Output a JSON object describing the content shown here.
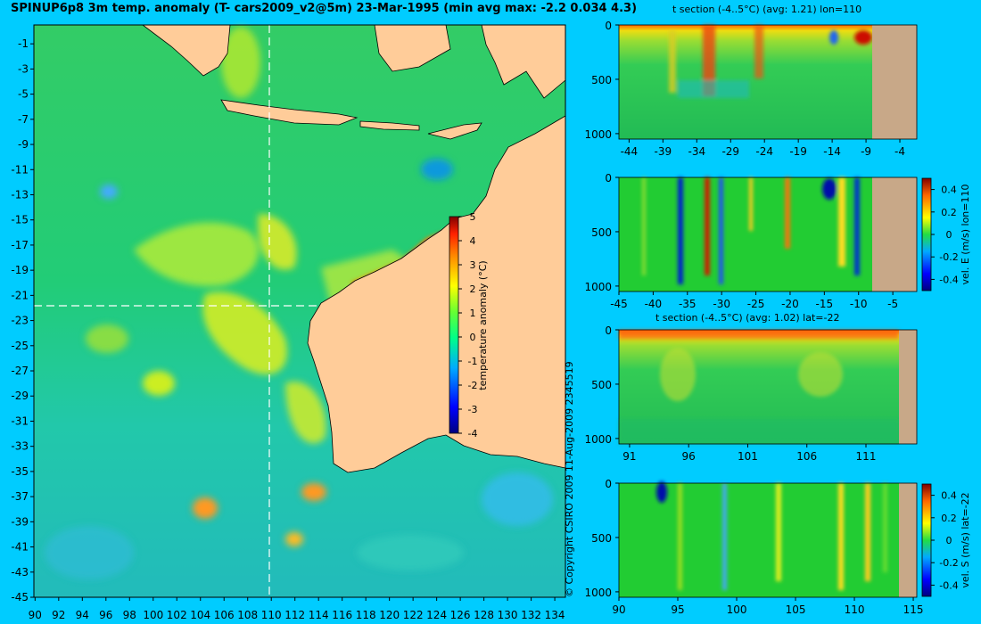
{
  "title": "SPINUP6p8 3m temp. anomaly (T- cars2009_v2@5m) 23-Mar-1995 (min avg max: -2.2 0.034 4.3)",
  "copyright": "© Copyright CSIRO 2009   11-Aug-2009 2345519",
  "colors": {
    "background": "#00ccff",
    "land": "#ffcc99",
    "seafloor": "#c8a888",
    "guide": "#ffffff"
  },
  "map": {
    "x_ticks": [
      "90",
      "92",
      "94",
      "96",
      "98",
      "100",
      "102",
      "104",
      "106",
      "108",
      "110",
      "112",
      "114",
      "116",
      "118",
      "120",
      "122",
      "124",
      "126",
      "128",
      "130",
      "132",
      "134"
    ],
    "y_ticks": [
      "-1",
      "-3",
      "-5",
      "-7",
      "-9",
      "-11",
      "-13",
      "-15",
      "-17",
      "-19",
      "-21",
      "-23",
      "-25",
      "-27",
      "-29",
      "-31",
      "-33",
      "-35",
      "-37",
      "-39",
      "-41",
      "-43",
      "-45"
    ],
    "xlim": [
      89.9,
      134.9
    ],
    "ylim": [
      -45,
      0.5
    ],
    "section_lon": 110,
    "section_lat": -22,
    "colorbar": {
      "label": "temperature anomaly (°C)",
      "ticks": [
        "5",
        "4",
        "3",
        "2",
        "1",
        "0",
        "-1",
        "-2",
        "-3",
        "-4"
      ],
      "range": [
        -4,
        5
      ]
    }
  },
  "panels": [
    {
      "title": "t section (-4..5°C) (avg: 1.21) lon=110",
      "x_ticks": [
        "-44",
        "-39",
        "-34",
        "-29",
        "-24",
        "-19",
        "-14",
        "-9",
        "-4"
      ],
      "y_ticks": [
        "0",
        "500",
        "1000"
      ],
      "land_from": -8
    },
    {
      "title": "",
      "x_ticks": [
        "-45",
        "-40",
        "-35",
        "-30",
        "-25",
        "-20",
        "-15",
        "-10",
        "-5"
      ],
      "y_ticks": [
        "0",
        "500",
        "1000"
      ],
      "land_from": -8,
      "colorbar": {
        "label": "vel. E (m/s) lon=110",
        "ticks": [
          "0.4",
          "0.2",
          "0",
          "-0.2",
          "-0.4"
        ]
      }
    },
    {
      "title": "t section (-4..5°C) (avg: 1.02) lat=-22",
      "x_ticks": [
        "91",
        "96",
        "101",
        "106",
        "111"
      ],
      "y_ticks": [
        "0",
        "500",
        "1000"
      ],
      "land_from": 113.8
    },
    {
      "title": "",
      "x_ticks": [
        "90",
        "95",
        "100",
        "105",
        "110",
        "115"
      ],
      "y_ticks": [
        "0",
        "500",
        "1000"
      ],
      "land_from": 113.8,
      "colorbar": {
        "label": "vel. S (m/s) lat=-22",
        "ticks": [
          "0.4",
          "0.2",
          "0",
          "-0.2",
          "-0.4"
        ]
      }
    }
  ]
}
